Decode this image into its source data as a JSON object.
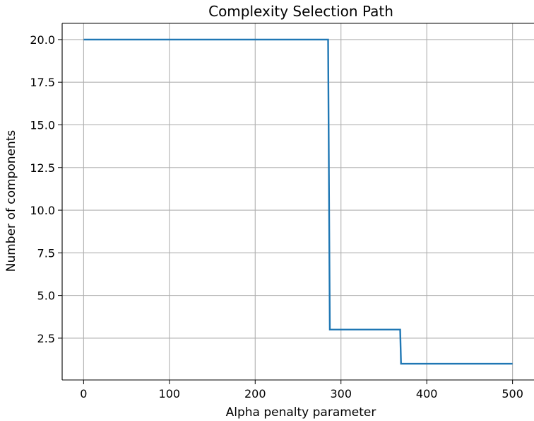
{
  "chart_data": {
    "type": "line",
    "title": "Complexity Selection Path",
    "xlabel": "Alpha penalty parameter",
    "ylabel": "Number of components",
    "xlim": [
      -25,
      525
    ],
    "ylim": [
      0.05,
      20.95
    ],
    "grid": true,
    "line_color": "#1f77b4",
    "x_ticks": [
      0,
      100,
      200,
      300,
      400,
      500
    ],
    "x_tick_labels": [
      "0",
      "100",
      "200",
      "300",
      "400",
      "500"
    ],
    "y_ticks": [
      2.5,
      5.0,
      7.5,
      10.0,
      12.5,
      15.0,
      17.5,
      20.0
    ],
    "y_tick_labels": [
      "2.5",
      "5.0",
      "7.5",
      "10.0",
      "12.5",
      "15.0",
      "17.5",
      "20.0"
    ],
    "series": [
      {
        "x": [
          0,
          285,
          287,
          369,
          370,
          500
        ],
        "y": [
          20,
          20,
          3,
          3,
          1,
          1
        ]
      }
    ]
  }
}
